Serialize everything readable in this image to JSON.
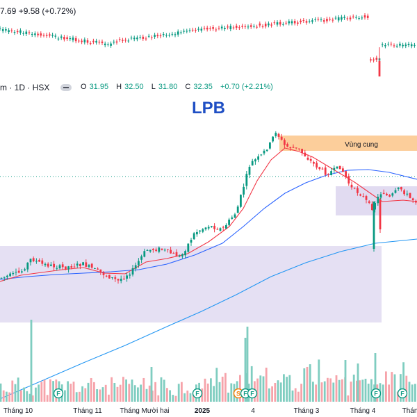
{
  "top_panel": {
    "change_text": "7.69 +9.58 (+0.72%)"
  },
  "legend": {
    "symbol_text": "m · 1D · HSX",
    "open_label": "O",
    "open": "31.95",
    "high_label": "H",
    "high": "32.50",
    "low_label": "L",
    "low": "31.80",
    "close_label": "C",
    "close": "32.35",
    "change": "+0.70 (+2.21%)"
  },
  "chart_data": {
    "type": "candlestick",
    "title": "LPB",
    "x_ticks": [
      "Tháng 10",
      "Tháng 11",
      "Tháng Mười hai",
      "2025",
      "4",
      "Tháng 3",
      "Tháng 4",
      "Thán"
    ],
    "annotations": [
      {
        "text": "Vùng cung",
        "kind": "supply-zone"
      },
      {
        "text": "",
        "kind": "support-zone"
      },
      {
        "text": "",
        "kind": "consolidation-zone"
      }
    ],
    "event_markers": [
      "F",
      "F",
      "S",
      "F",
      "F",
      "F",
      "F"
    ],
    "series": [
      {
        "name": "price",
        "type": "candlestick"
      },
      {
        "name": "",
        "type": "ma-short",
        "color": "#f23645"
      },
      {
        "name": "",
        "type": "ma-mid",
        "color": "#2962ff"
      },
      {
        "name": "",
        "type": "ma-long",
        "color": "#2196f3"
      },
      {
        "name": "",
        "type": "volume"
      }
    ],
    "colors": {
      "up": "#089981",
      "down": "#f23645",
      "ma_short": "#f23645",
      "ma_mid": "#2962ff",
      "ma_long": "#2196f3"
    }
  }
}
